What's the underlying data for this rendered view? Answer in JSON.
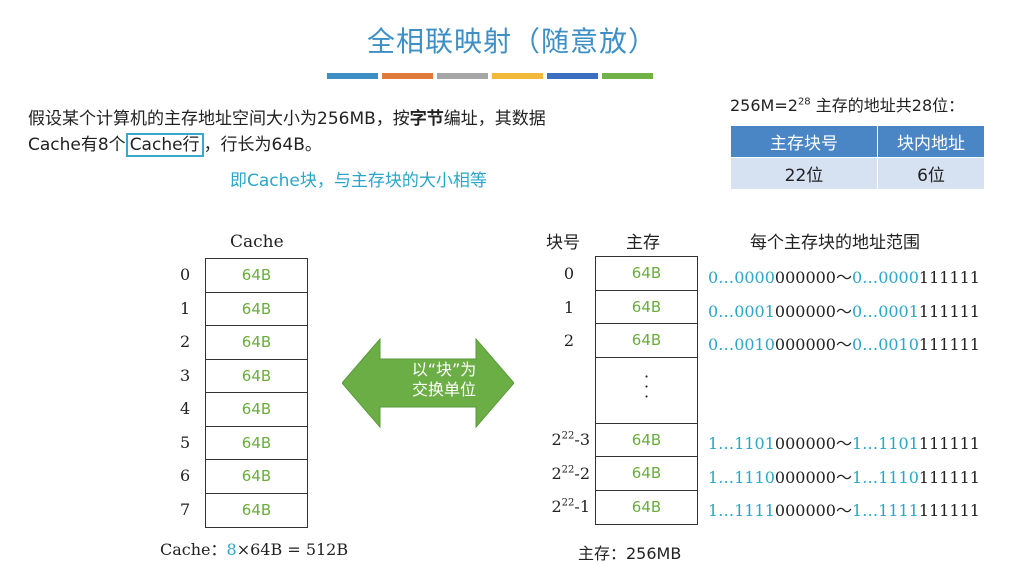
{
  "title": "全相联映射（随意放）",
  "colorbar": [
    "#3d8fc6",
    "#e07a3a",
    "#a6a6a6",
    "#f2b93b",
    "#3c6fc0",
    "#6fb347"
  ],
  "intro": {
    "part1": "假设某个计算机的主存地址空间大小为256MB，按",
    "bold": "字节",
    "part2": "编址，其数据Cache有8个",
    "boxed": "Cache行",
    "part3": "，行长为64B。",
    "note": "即Cache块，与主存块的大小相等"
  },
  "address": {
    "heading_pre": "256M=2",
    "heading_exp": "28",
    "heading_post": " 主存的地址共28位：",
    "col1": "主存块号",
    "col2": "块内地址",
    "val1": "22位",
    "val2": "6位"
  },
  "cache": {
    "label": "Cache",
    "indices": [
      "0",
      "1",
      "2",
      "3",
      "4",
      "5",
      "6",
      "7"
    ],
    "cell": "64B",
    "footer_pre": "Cache：",
    "footer_hl": "8",
    "footer_post": "×64B = 512B"
  },
  "arrow": {
    "line1": "以“块”为",
    "line2": "交换单位"
  },
  "main_memory": {
    "col_block": "块号",
    "col_mem": "主存",
    "col_range": "每个主存块的地址范围",
    "cell": "64B",
    "dots": "·\n·\n·",
    "rows": [
      {
        "idx": "0",
        "a1": "0…",
        "a2": "0000",
        "a3": "000000～",
        "b1": "0…",
        "b2": "0000",
        "b3": "111111"
      },
      {
        "idx": "1",
        "a1": "0…",
        "a2": "0001",
        "a3": "000000～",
        "b1": "0…",
        "b2": "0001",
        "b3": "111111"
      },
      {
        "idx": "2",
        "a1": "0…",
        "a2": "0010",
        "a3": "000000～",
        "b1": "0…",
        "b2": "0010",
        "b3": "111111"
      }
    ],
    "tail_rows": [
      {
        "base": "2",
        "exp": "22",
        "suffix": "-3",
        "a1": "1…",
        "a2": "1101",
        "a3": "000000～",
        "b1": "1…",
        "b2": "1101",
        "b3": "111111"
      },
      {
        "base": "2",
        "exp": "22",
        "suffix": "-2",
        "a1": "1…",
        "a2": "1110",
        "a3": "000000～",
        "b1": "1…",
        "b2": "1110",
        "b3": "111111"
      },
      {
        "base": "2",
        "exp": "22",
        "suffix": "-1",
        "a1": "1…",
        "a2": "1111",
        "a3": "000000～",
        "b1": "1…",
        "b2": "1111",
        "b3": "111111"
      }
    ],
    "footer": "主存：256MB"
  }
}
